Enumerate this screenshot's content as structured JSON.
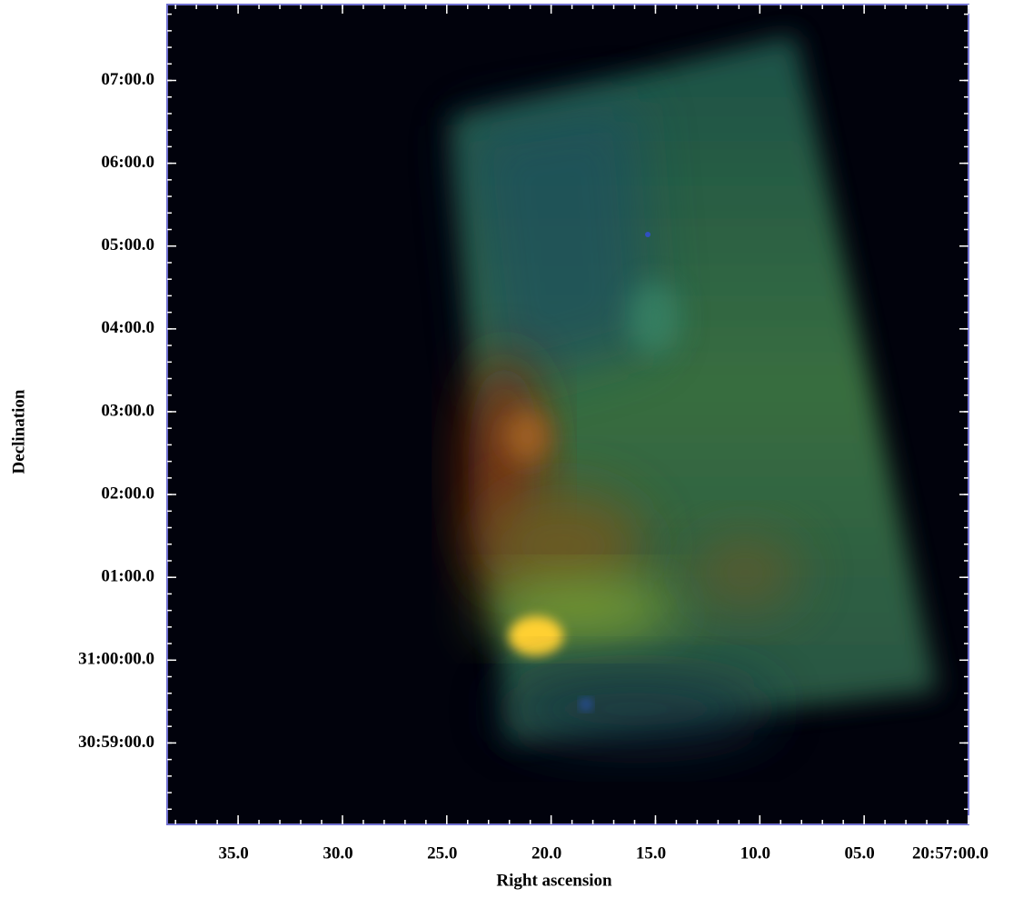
{
  "chart_data": {
    "type": "image",
    "xlabel": "Right ascension",
    "ylabel": "Declination",
    "xlim": [
      38.4,
      0
    ],
    "xticks": [
      {
        "value": 35,
        "label": "35.0"
      },
      {
        "value": 30,
        "label": "30.0"
      },
      {
        "value": 25,
        "label": "25.0"
      },
      {
        "value": 20,
        "label": "20.0"
      },
      {
        "value": 15,
        "label": "15.0"
      },
      {
        "value": 10,
        "label": "10.0"
      },
      {
        "value": 5,
        "label": "05.0"
      },
      {
        "value": 0,
        "label": "20:57:00.0"
      }
    ],
    "ylim": [
      -119,
      475
    ],
    "yticks": [
      {
        "value": 420,
        "label": "07:00.0"
      },
      {
        "value": 360,
        "label": "06:00.0"
      },
      {
        "value": 300,
        "label": "05:00.0"
      },
      {
        "value": 240,
        "label": "04:00.0"
      },
      {
        "value": 180,
        "label": "03:00.0"
      },
      {
        "value": 120,
        "label": "02:00.0"
      },
      {
        "value": 60,
        "label": "01:00.0"
      },
      {
        "value": 0,
        "label": "31:00:00.0"
      },
      {
        "value": -60,
        "label": "30:59:00.0"
      }
    ]
  }
}
